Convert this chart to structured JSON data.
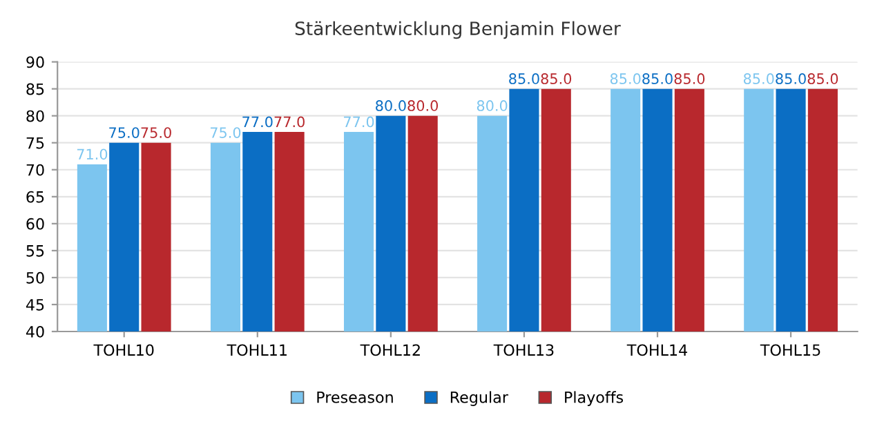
{
  "chart_data": {
    "type": "bar",
    "title": "Stärkeentwicklung Benjamin Flower",
    "categories": [
      "TOHL10",
      "TOHL11",
      "TOHL12",
      "TOHL13",
      "TOHL14",
      "TOHL15"
    ],
    "series": [
      {
        "name": "Preseason",
        "color": "#7cc5ef",
        "values": [
          71,
          75,
          77,
          80,
          85,
          85
        ],
        "value_labels": [
          "71.0",
          "75.0",
          "77.0",
          "80.0",
          "85.0",
          "85.0"
        ]
      },
      {
        "name": "Regular",
        "color": "#0b6ec4",
        "values": [
          75,
          77,
          80,
          85,
          85,
          85
        ],
        "value_labels": [
          "75.0",
          "77.0",
          "80.0",
          "85.0",
          "85.0",
          "85.0"
        ]
      },
      {
        "name": "Playoffs",
        "color": "#b8282d",
        "values": [
          75,
          77,
          80,
          85,
          85,
          85
        ],
        "value_labels": [
          "75.0",
          "77.0",
          "80.0",
          "85.0",
          "85.0",
          "85.0"
        ]
      }
    ],
    "ylim": [
      40,
      90
    ],
    "yticks": [
      40,
      45,
      50,
      55,
      60,
      65,
      70,
      75,
      80,
      85,
      90
    ],
    "grid": "y",
    "legend": "bottom"
  }
}
